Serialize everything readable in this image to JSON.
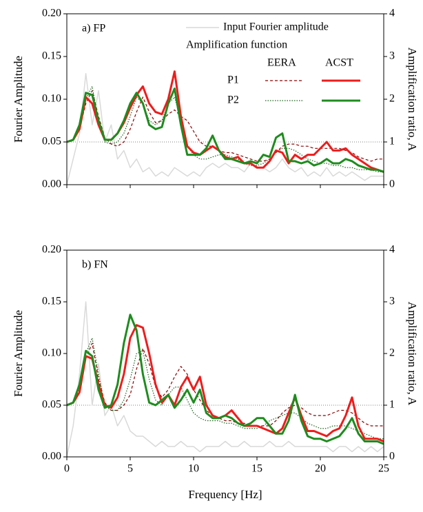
{
  "chart_data": [
    {
      "type": "line",
      "label": "a) FP",
      "ylabel": "Fourier Amplitude",
      "y2label": "Amplification ratio, A",
      "x": [
        0,
        0.5,
        1,
        1.5,
        2,
        2.5,
        3,
        3.5,
        4,
        4.5,
        5,
        5.5,
        6,
        6.5,
        7,
        7.5,
        8,
        8.5,
        9,
        9.5,
        10,
        10.5,
        11,
        11.5,
        12,
        12.5,
        13,
        13.5,
        14,
        14.5,
        15,
        15.5,
        16,
        16.5,
        17,
        17.5,
        18,
        18.5,
        19,
        19.5,
        20,
        20.5,
        21,
        21.5,
        22,
        22.5,
        23,
        23.5,
        24,
        24.5,
        25
      ],
      "xlim": [
        0,
        25
      ],
      "xticks": [
        0,
        5,
        10,
        15,
        20,
        25
      ],
      "ylim": [
        0,
        0.2
      ],
      "yticks": [
        {
          "value": 0,
          "label": "0.00"
        },
        {
          "value": 0.05,
          "label": "0.05"
        },
        {
          "value": 0.1,
          "label": "0.10"
        },
        {
          "value": 0.15,
          "label": "0.15"
        },
        {
          "value": 0.2,
          "label": "0.20"
        }
      ],
      "y2lim": [
        0,
        4
      ],
      "y2ticks": [
        0,
        1,
        2,
        3,
        4
      ],
      "hline": 1,
      "legend": {
        "title": "Amplification function",
        "columns": [
          "EERA",
          "ACST"
        ],
        "rows": [
          "P1",
          "P2"
        ]
      },
      "series": [
        {
          "name": "Input Fourier amplitude",
          "color": "#d9d9d9",
          "style": "solid",
          "line_width": 1.5,
          "values": [
            0,
            0.03,
            0.06,
            0.13,
            0.07,
            0.11,
            0.05,
            0.07,
            0.03,
            0.04,
            0.02,
            0.03,
            0.015,
            0.02,
            0.01,
            0.015,
            0.01,
            0.02,
            0.015,
            0.01,
            0.015,
            0.01,
            0.02,
            0.025,
            0.02,
            0.025,
            0.02,
            0.02,
            0.015,
            0.025,
            0.02,
            0.02,
            0.015,
            0.02,
            0.03,
            0.02,
            0.015,
            0.02,
            0.01,
            0.015,
            0.01,
            0.02,
            0.01,
            0.015,
            0.01,
            0.015,
            0.01,
            0.005,
            0.01,
            0.01,
            0.01
          ]
        },
        {
          "axis": "y2",
          "column": 0,
          "row": 0,
          "color": "#8b0000",
          "style": "dashed",
          "line_width": 1.2,
          "values": [
            1.0,
            1.05,
            1.3,
            1.9,
            2.2,
            1.6,
            1.1,
            0.95,
            0.9,
            1.0,
            1.3,
            1.7,
            2.05,
            1.7,
            1.45,
            1.5,
            1.65,
            1.75,
            1.6,
            1.5,
            1.25,
            1.0,
            0.9,
            0.9,
            0.8,
            0.75,
            0.75,
            0.7,
            0.65,
            0.6,
            0.55,
            0.55,
            0.6,
            0.75,
            0.9,
            0.95,
            0.95,
            0.9,
            0.9,
            0.85,
            0.85,
            0.85,
            0.85,
            0.85,
            0.8,
            0.75,
            0.65,
            0.6,
            0.55,
            0.6,
            0.6
          ]
        },
        {
          "axis": "y2",
          "column": 0,
          "row": 1,
          "color": "#1a5e1a",
          "style": "dotted",
          "line_width": 1.2,
          "values": [
            1.0,
            1.05,
            1.35,
            2.0,
            2.3,
            1.5,
            1.0,
            0.95,
            1.0,
            1.2,
            1.6,
            2.05,
            1.9,
            1.5,
            1.4,
            1.5,
            1.9,
            2.05,
            1.5,
            0.9,
            0.7,
            0.6,
            0.6,
            0.65,
            0.7,
            0.7,
            0.65,
            0.6,
            0.5,
            0.45,
            0.45,
            0.5,
            0.6,
            0.75,
            0.85,
            0.85,
            0.8,
            0.7,
            0.6,
            0.55,
            0.5,
            0.5,
            0.45,
            0.45,
            0.4,
            0.4,
            0.35,
            0.35,
            0.35,
            0.3,
            0.3
          ]
        },
        {
          "axis": "y2",
          "column": 1,
          "row": 0,
          "color": "#ee1c1c",
          "style": "solid",
          "line_width": 3,
          "values": [
            1.0,
            1.05,
            1.3,
            2.05,
            1.9,
            1.4,
            1.05,
            1.05,
            1.2,
            1.45,
            1.8,
            2.1,
            2.3,
            1.9,
            1.7,
            1.65,
            2.0,
            2.65,
            1.6,
            0.9,
            0.75,
            0.7,
            0.8,
            0.9,
            0.8,
            0.65,
            0.6,
            0.65,
            0.5,
            0.5,
            0.4,
            0.4,
            0.55,
            0.8,
            0.75,
            0.5,
            0.7,
            0.6,
            0.7,
            0.7,
            0.85,
            1.0,
            0.8,
            0.8,
            0.85,
            0.7,
            0.6,
            0.5,
            0.4,
            0.35,
            0.3
          ]
        },
        {
          "axis": "y2",
          "column": 1,
          "row": 1,
          "color": "#1e8c1e",
          "style": "solid",
          "line_width": 3,
          "values": [
            1.0,
            1.05,
            1.4,
            2.15,
            2.1,
            1.5,
            1.05,
            1.05,
            1.2,
            1.5,
            1.9,
            2.15,
            1.9,
            1.4,
            1.3,
            1.35,
            1.9,
            2.25,
            1.4,
            0.7,
            0.7,
            0.7,
            0.85,
            1.15,
            0.8,
            0.6,
            0.6,
            0.55,
            0.5,
            0.55,
            0.5,
            0.7,
            0.65,
            1.1,
            1.2,
            0.55,
            0.55,
            0.5,
            0.55,
            0.45,
            0.5,
            0.6,
            0.5,
            0.5,
            0.6,
            0.55,
            0.45,
            0.4,
            0.35,
            0.35,
            0.3
          ]
        }
      ]
    },
    {
      "type": "line",
      "label": "b) FN",
      "ylabel": "Fourier Amplitude",
      "y2label": "Amplification ratio, A",
      "xlabel": "Frequency [Hz]",
      "x": [
        0,
        0.5,
        1,
        1.5,
        2,
        2.5,
        3,
        3.5,
        4,
        4.5,
        5,
        5.5,
        6,
        6.5,
        7,
        7.5,
        8,
        8.5,
        9,
        9.5,
        10,
        10.5,
        11,
        11.5,
        12,
        12.5,
        13,
        13.5,
        14,
        14.5,
        15,
        15.5,
        16,
        16.5,
        17,
        17.5,
        18,
        18.5,
        19,
        19.5,
        20,
        20.5,
        21,
        21.5,
        22,
        22.5,
        23,
        23.5,
        24,
        24.5,
        25
      ],
      "xlim": [
        0,
        25
      ],
      "xticks": [
        0,
        5,
        10,
        15,
        20,
        25
      ],
      "ylim": [
        0,
        0.2
      ],
      "yticks": [
        {
          "value": 0,
          "label": "0.00"
        },
        {
          "value": 0.05,
          "label": "0.05"
        },
        {
          "value": 0.1,
          "label": "0.10"
        },
        {
          "value": 0.15,
          "label": "0.15"
        },
        {
          "value": 0.2,
          "label": "0.20"
        }
      ],
      "y2lim": [
        0,
        4
      ],
      "y2ticks": [
        0,
        1,
        2,
        3,
        4
      ],
      "hline": 1,
      "series": [
        {
          "color": "#d9d9d9",
          "style": "solid",
          "line_width": 1.5,
          "values": [
            0,
            0.03,
            0.08,
            0.15,
            0.05,
            0.09,
            0.04,
            0.05,
            0.03,
            0.04,
            0.025,
            0.02,
            0.02,
            0.015,
            0.01,
            0.015,
            0.01,
            0.01,
            0.015,
            0.01,
            0.01,
            0.005,
            0.01,
            0.01,
            0.01,
            0.015,
            0.01,
            0.01,
            0.015,
            0.01,
            0.01,
            0.01,
            0.015,
            0.01,
            0.01,
            0.015,
            0.01,
            0.01,
            0.01,
            0.01,
            0.01,
            0.01,
            0.005,
            0.01,
            0.01,
            0.005,
            0.01,
            0.005,
            0.01,
            0.005,
            0.01
          ]
        },
        {
          "axis": "y2",
          "color": "#8b0000",
          "style": "dashed",
          "line_width": 1.2,
          "values": [
            1.0,
            1.05,
            1.3,
            1.9,
            2.2,
            1.5,
            1.05,
            0.9,
            0.9,
            1.0,
            1.2,
            1.7,
            2.1,
            1.8,
            1.35,
            1.15,
            1.3,
            1.55,
            1.75,
            1.6,
            1.3,
            1.1,
            0.9,
            0.8,
            0.75,
            0.7,
            0.7,
            0.65,
            0.65,
            0.6,
            0.6,
            0.6,
            0.6,
            0.7,
            0.85,
            0.95,
            1.0,
            0.95,
            0.85,
            0.8,
            0.8,
            0.8,
            0.85,
            0.9,
            0.9,
            0.85,
            0.75,
            0.65,
            0.6,
            0.6,
            0.6
          ]
        },
        {
          "axis": "y2",
          "color": "#1a5e1a",
          "style": "dotted",
          "line_width": 1.2,
          "values": [
            1.0,
            1.05,
            1.35,
            2.0,
            2.3,
            1.6,
            1.0,
            0.9,
            0.9,
            1.1,
            1.5,
            2.0,
            2.05,
            1.5,
            1.1,
            1.0,
            1.2,
            1.35,
            1.35,
            1.1,
            0.85,
            0.75,
            0.7,
            0.7,
            0.7,
            0.65,
            0.65,
            0.6,
            0.55,
            0.55,
            0.55,
            0.6,
            0.7,
            0.75,
            0.8,
            0.85,
            0.85,
            0.75,
            0.65,
            0.6,
            0.55,
            0.55,
            0.6,
            0.6,
            0.6,
            0.55,
            0.5,
            0.45,
            0.4,
            0.35,
            0.35
          ]
        },
        {
          "axis": "y2",
          "color": "#ee1c1c",
          "style": "solid",
          "line_width": 3,
          "values": [
            1.0,
            1.05,
            1.25,
            1.95,
            1.9,
            1.4,
            1.0,
            0.95,
            1.15,
            1.6,
            2.3,
            2.55,
            2.5,
            2.0,
            1.4,
            1.05,
            1.2,
            1.0,
            1.35,
            1.55,
            1.3,
            1.55,
            1.0,
            0.8,
            0.75,
            0.8,
            0.9,
            0.75,
            0.6,
            0.6,
            0.6,
            0.55,
            0.5,
            0.45,
            0.55,
            0.85,
            1.15,
            0.8,
            0.5,
            0.5,
            0.45,
            0.4,
            0.5,
            0.55,
            0.8,
            1.15,
            0.6,
            0.35,
            0.35,
            0.35,
            0.3
          ]
        },
        {
          "axis": "y2",
          "color": "#1e8c1e",
          "style": "solid",
          "line_width": 3,
          "values": [
            1.0,
            1.05,
            1.4,
            2.05,
            1.95,
            1.3,
            0.95,
            1.0,
            1.4,
            2.2,
            2.75,
            2.45,
            1.6,
            1.05,
            1.0,
            1.1,
            1.2,
            0.95,
            1.1,
            1.3,
            1.05,
            1.3,
            0.85,
            0.75,
            0.75,
            0.8,
            0.75,
            0.65,
            0.6,
            0.65,
            0.75,
            0.75,
            0.6,
            0.45,
            0.45,
            0.7,
            1.2,
            0.7,
            0.4,
            0.35,
            0.35,
            0.3,
            0.35,
            0.4,
            0.55,
            0.75,
            0.45,
            0.3,
            0.3,
            0.3,
            0.25
          ]
        }
      ]
    }
  ]
}
